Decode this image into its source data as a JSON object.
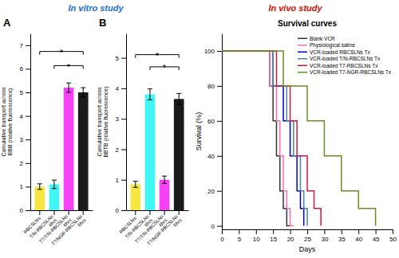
{
  "annotations": [
    {
      "text": "In vitro study",
      "color": "#1a6fcc"
    },
    {
      "text": "In vivo study",
      "color": "#cc1100"
    }
  ],
  "chart_data": [
    {
      "type": "bar",
      "title": "A",
      "ylabel": "Cumulative transport across\nBBB (relative fluorescence)",
      "categories": [
        "RBCSLNs",
        "T/N-RBCSLNs\n6hrs",
        "T7/T/N-RBCSLNs\n6hrs",
        "T7/NGR-RBCSLNs\n6hrs"
      ],
      "values": [
        1.0,
        1.1,
        5.2,
        5.0
      ],
      "errors": [
        0.12,
        0.18,
        0.2,
        0.2
      ],
      "colors": [
        "#f5e642",
        "#42f5f5",
        "#f542f5",
        "#1a1a1a"
      ],
      "ylim": [
        0,
        7.5
      ],
      "yticks": [
        0,
        1,
        2,
        3,
        4,
        5,
        6,
        7
      ],
      "annotations": [
        {
          "text": "*",
          "between": [
            "RBCSLNs",
            "T7/NGR-RBCSLNs\n6hrs"
          ],
          "y": 6.6
        },
        {
          "text": "*",
          "between": [
            "T/N-RBCSLNs\n6hrs",
            "T7/NGR-RBCSLNs\n6hrs"
          ],
          "y": 6.0
        }
      ]
    },
    {
      "type": "bar",
      "title": "B",
      "ylabel": "Cumulative transport across\nBBTB (relative fluorescence)",
      "categories": [
        "RBCSLNs",
        "T/N-RBCSLNs\n6hrs",
        "T7/T/N-RBCSLNs\n6hrs",
        "T7/NGR-RBCSLNs\n6hrs"
      ],
      "values": [
        0.85,
        3.8,
        1.0,
        3.65
      ],
      "errors": [
        0.1,
        0.18,
        0.12,
        0.18
      ],
      "colors": [
        "#f5e642",
        "#42f5f5",
        "#f542f5",
        "#1a1a1a"
      ],
      "ylim": [
        0,
        5.8
      ],
      "yticks": [
        0,
        1,
        2,
        3,
        4,
        5
      ],
      "annotations": [
        {
          "text": "*",
          "between": [
            "T/N-RBCSLNs\n6hrs",
            "T7/NGR-RBCSLNs\n6hrs"
          ],
          "y": 4.6
        },
        {
          "text": "*",
          "between": [
            "RBCSLNs",
            "T7/NGR-RBCSLNs\n6hrs"
          ],
          "y": 5.0
        }
      ]
    },
    {
      "type": "line",
      "title": "Survival curves",
      "xlabel": "Days",
      "ylabel": "Survival (%)",
      "series": [
        {
          "name": "Blank VCR",
          "color": "#333333",
          "x": [
            0,
            14,
            14,
            15,
            15,
            16,
            16,
            17,
            17,
            18,
            18,
            19,
            19,
            20,
            20
          ],
          "values": [
            100,
            100,
            80,
            80,
            60,
            60,
            40,
            40,
            20,
            20,
            10,
            10,
            0,
            0,
            0
          ]
        },
        {
          "name": "Physiological saline",
          "color": "#ff69b4",
          "x": [
            0,
            14,
            14,
            16,
            16,
            17,
            17,
            18,
            18,
            19,
            19,
            20,
            20,
            21,
            21
          ],
          "values": [
            100,
            100,
            80,
            80,
            60,
            60,
            40,
            40,
            20,
            20,
            10,
            10,
            0,
            0,
            0
          ]
        },
        {
          "name": "VCR-loaded RBCSLNs Tx",
          "color": "#0000cd",
          "x": [
            0,
            15,
            15,
            18,
            18,
            20,
            20,
            22,
            22,
            23,
            23,
            24,
            24
          ],
          "values": [
            100,
            100,
            80,
            80,
            60,
            60,
            40,
            40,
            20,
            20,
            10,
            10,
            0
          ]
        },
        {
          "name": "VCR-loaded T/N-RBCSLNs Tx",
          "color": "#4682b4",
          "x": [
            0,
            15,
            15,
            19,
            19,
            21,
            21,
            23,
            23,
            24,
            24,
            25,
            25
          ],
          "values": [
            100,
            100,
            80,
            80,
            60,
            60,
            40,
            40,
            20,
            20,
            10,
            10,
            0
          ]
        },
        {
          "name": "VCR-loaded T7-RBCSLNs Tx",
          "color": "#dc143c",
          "x": [
            0,
            16,
            16,
            20,
            20,
            22,
            22,
            25,
            25,
            27,
            27,
            29,
            29
          ],
          "values": [
            100,
            100,
            80,
            80,
            60,
            60,
            40,
            40,
            20,
            20,
            10,
            10,
            0
          ]
        },
        {
          "name": "VCR-loaded T7-NGR-RBCSLNs Tx",
          "color": "#6b8e23",
          "x": [
            0,
            18,
            18,
            25,
            25,
            30,
            30,
            35,
            35,
            40,
            40,
            45,
            45
          ],
          "values": [
            100,
            100,
            80,
            80,
            60,
            60,
            40,
            40,
            20,
            20,
            10,
            10,
            0
          ]
        }
      ],
      "xlim": [
        0,
        50
      ],
      "xticks": [
        0,
        5,
        10,
        15,
        20,
        25,
        30,
        35,
        40,
        45,
        50
      ],
      "ylim": [
        -2,
        110
      ],
      "yticks": [
        0,
        20,
        40,
        60,
        80,
        100
      ],
      "legend": "upper right"
    }
  ]
}
